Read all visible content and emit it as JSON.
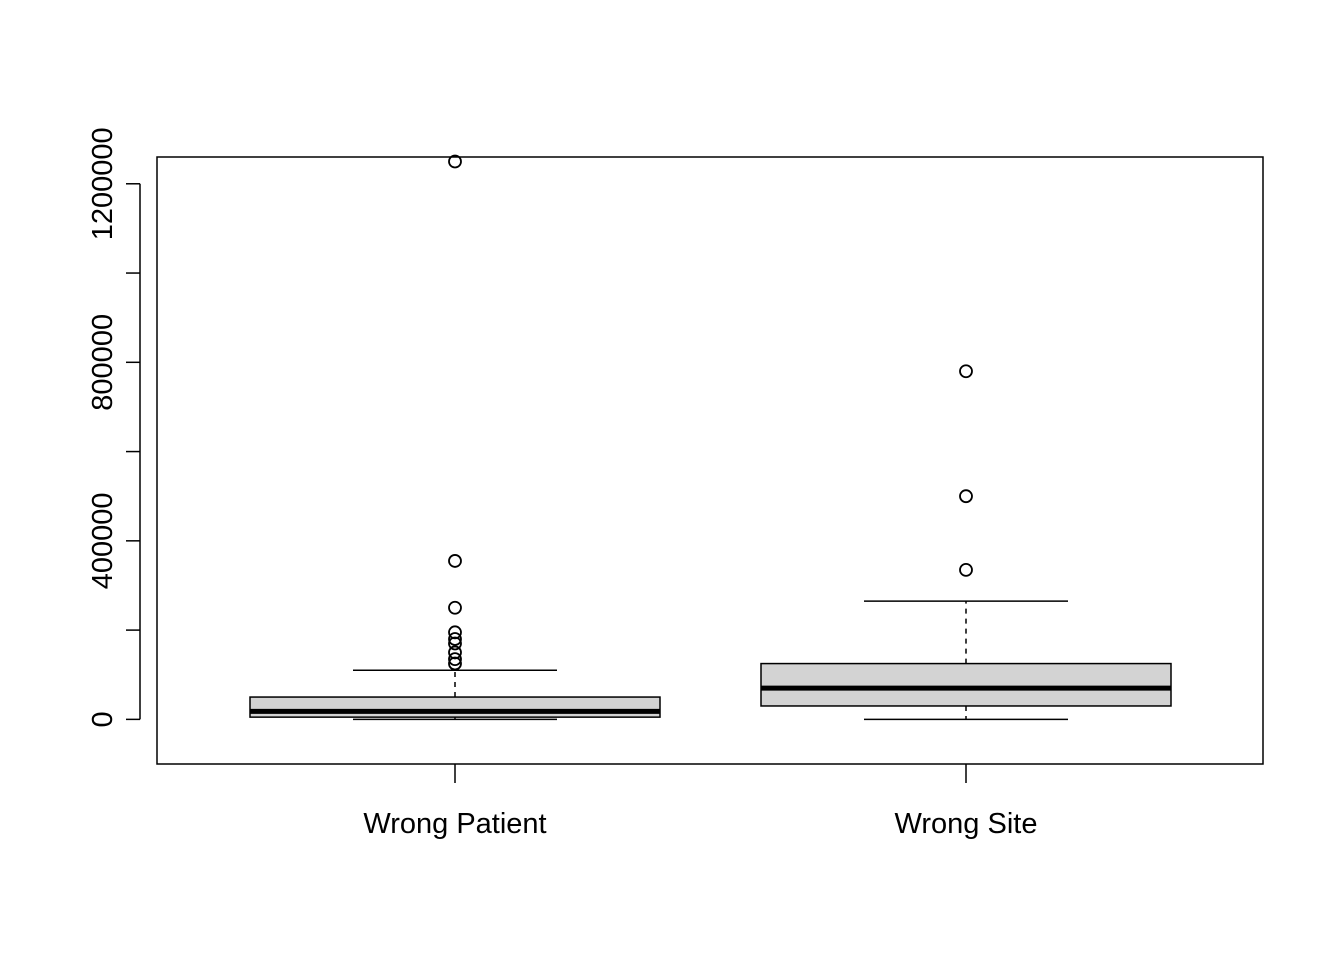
{
  "chart_data": {
    "type": "boxplot",
    "title": "",
    "xlabel": "",
    "ylabel": "",
    "ylim": [
      -100000,
      1260000
    ],
    "yticks": [
      0,
      200000,
      400000,
      600000,
      800000,
      1000000,
      1200000
    ],
    "ytick_labels": [
      "0",
      "",
      "400000",
      "",
      "800000",
      "",
      "1200000"
    ],
    "categories": [
      "Wrong Patient",
      "Wrong Site"
    ],
    "box_fill": "#d3d3d3",
    "series": [
      {
        "category": "Wrong Patient",
        "whisker_low": 0,
        "q1": 5000,
        "median": 18000,
        "q3": 50000,
        "whisker_high": 110000,
        "outliers": [
          125000,
          135000,
          150000,
          170000,
          180000,
          195000,
          250000,
          355000,
          1250000
        ]
      },
      {
        "category": "Wrong Site",
        "whisker_low": 0,
        "q1": 30000,
        "median": 70000,
        "q3": 125000,
        "whisker_high": 265000,
        "outliers": [
          335000,
          500000,
          780000
        ]
      }
    ]
  }
}
